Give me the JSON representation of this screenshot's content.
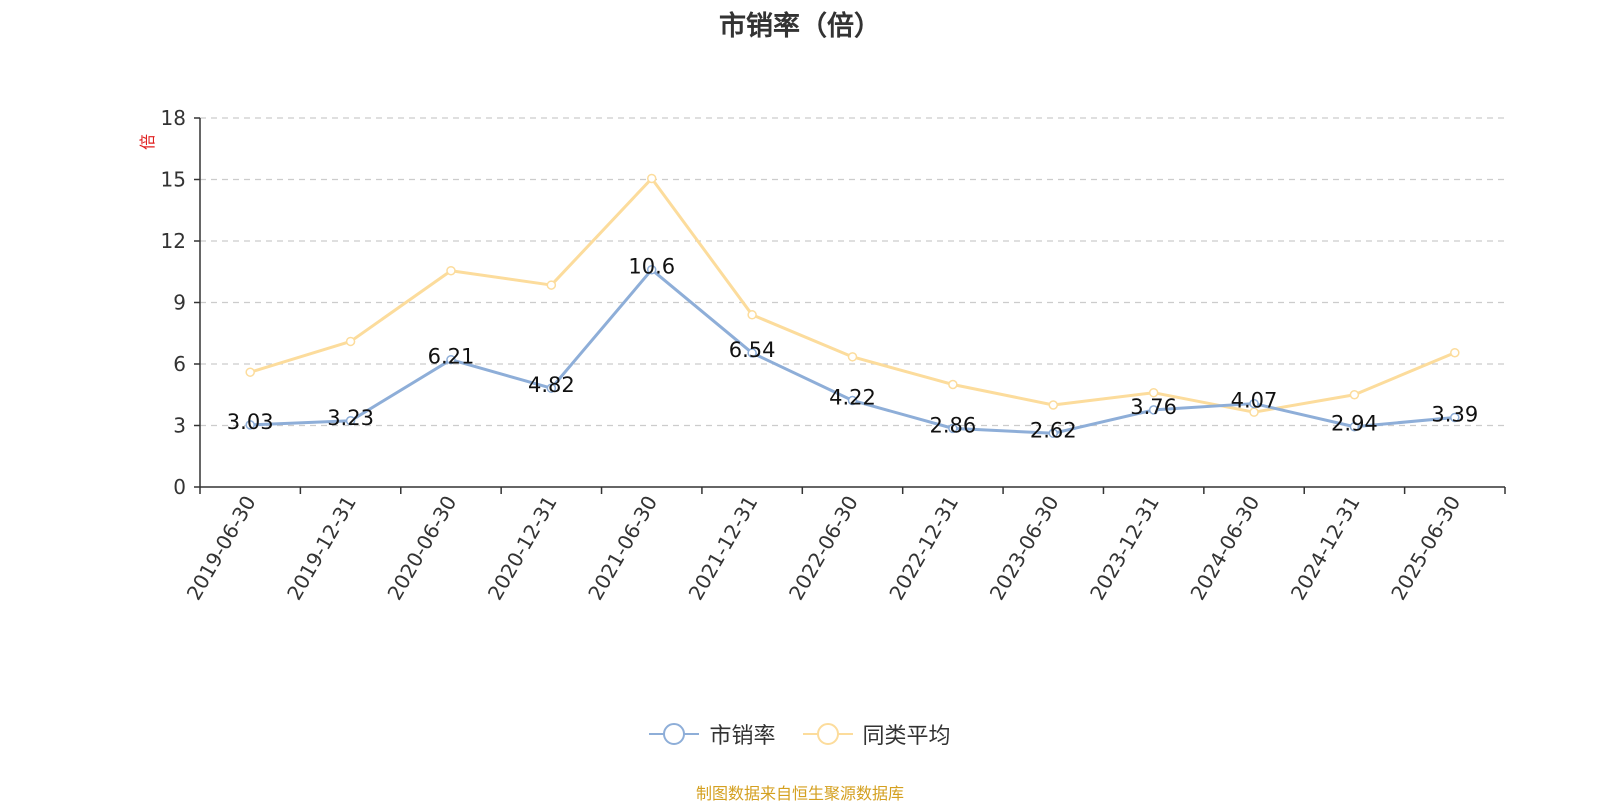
{
  "chart_data": {
    "type": "line",
    "title": "市销率（倍）",
    "ylabel": "倍",
    "xlabel": "",
    "ylim": [
      0,
      18
    ],
    "yticks": [
      0,
      3,
      6,
      9,
      12,
      15,
      18
    ],
    "grid": true,
    "legend_position": "bottom",
    "categories": [
      "2019-06-30",
      "2019-12-31",
      "2020-06-30",
      "2020-12-31",
      "2021-06-30",
      "2021-12-31",
      "2022-06-30",
      "2022-12-31",
      "2023-06-30",
      "2023-12-31",
      "2024-06-30",
      "2024-12-31",
      "2025-06-30"
    ],
    "series": [
      {
        "name": "市销率",
        "color": "#8eaed8",
        "show_labels": true,
        "values": [
          3.03,
          3.23,
          6.21,
          4.82,
          10.6,
          6.54,
          4.22,
          2.86,
          2.62,
          3.76,
          4.07,
          2.94,
          3.39
        ]
      },
      {
        "name": "同类平均",
        "color": "#fcdc9c",
        "show_labels": false,
        "values": [
          5.6,
          7.1,
          10.55,
          9.85,
          15.05,
          8.4,
          6.35,
          5.0,
          4.0,
          4.6,
          3.65,
          4.5,
          6.55
        ]
      }
    ],
    "source_note": "制图数据来自恒生聚源数据库"
  }
}
